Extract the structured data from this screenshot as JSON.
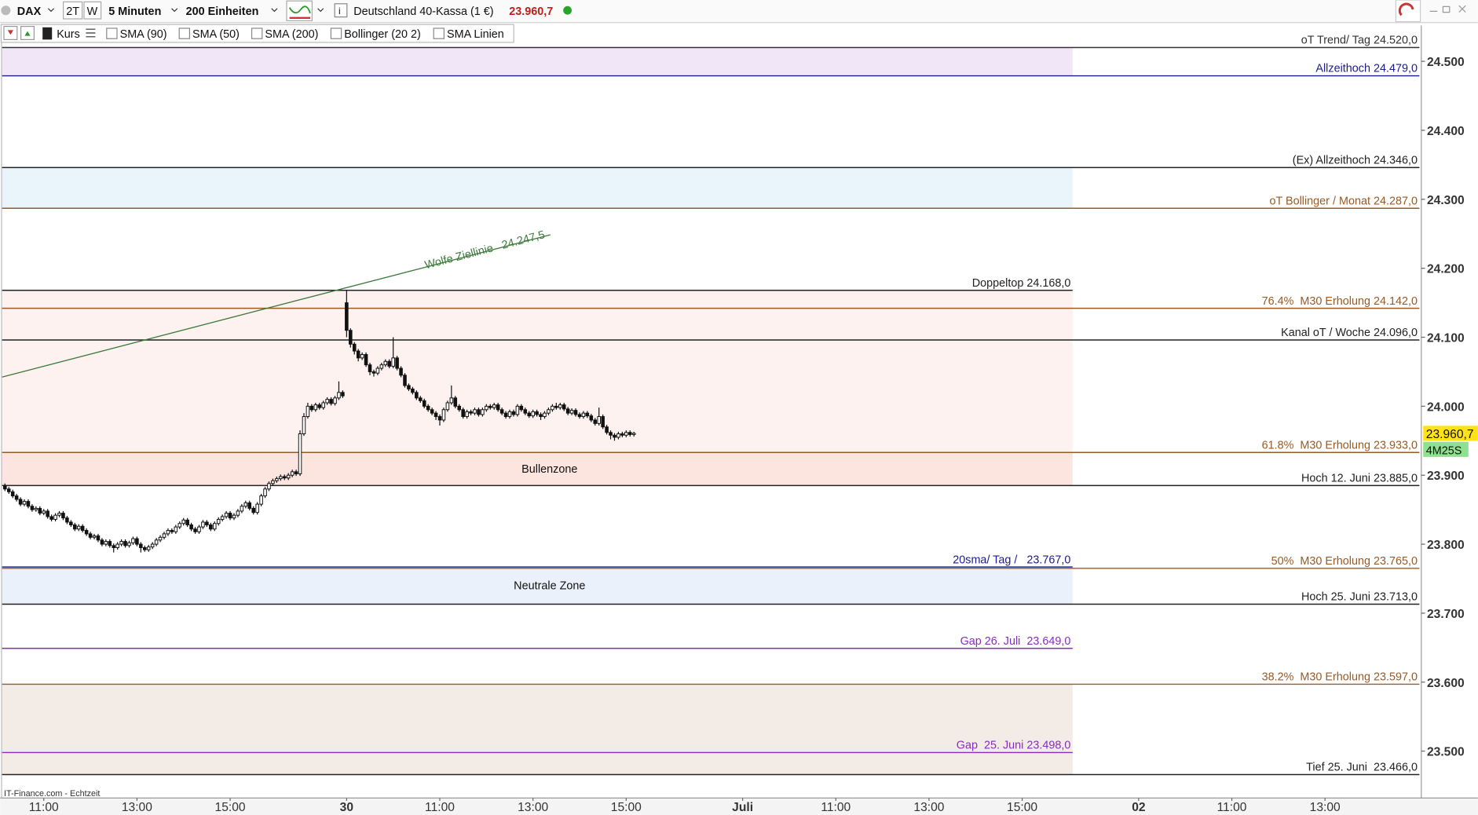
{
  "toolbar": {
    "symbol": "DAX",
    "buttons": [
      "2T",
      "W"
    ],
    "interval": "5 Minuten",
    "units": "200 Einheiten",
    "instrument": "Deutschland 40-Kassa (1 €)"
  },
  "indicators": [
    "Kurs",
    "SMA (90)",
    "SMA (50)",
    "SMA (200)",
    "Bollinger (20 2)",
    "SMA Linien"
  ],
  "footer": "IT-Finance.com - Echtzeit",
  "chart_data": {
    "type": "candlestick",
    "candles": {
      "open": [
        23885,
        23880,
        23876,
        23870,
        23865,
        23858,
        23862,
        23855,
        23850,
        23852,
        23845,
        23848,
        23840,
        23836,
        23842,
        23845,
        23838,
        23832,
        23828,
        23822,
        23826,
        23820,
        23815,
        23810,
        23812,
        23806,
        23800,
        23804,
        23798,
        23795,
        23800,
        23804,
        23798,
        23802,
        23808,
        23800,
        23795,
        23792,
        23796,
        23800,
        23806,
        23810,
        23815,
        23820,
        23818,
        23825,
        23830,
        23835,
        23828,
        23822,
        23818,
        23825,
        23832,
        23828,
        23822,
        23830,
        23836,
        23840,
        23845,
        23838,
        23842,
        23848,
        23855,
        23860,
        23852,
        23846,
        23858,
        23870,
        23880,
        23888,
        23892,
        23895,
        23898,
        23896,
        23900,
        23905,
        23902,
        23960,
        23985,
        24000,
        23995,
        24002,
        23998,
        24005,
        24010,
        24004,
        24012,
        24020,
        24150,
        24110,
        24090,
        24080,
        24070,
        24075,
        24060,
        24050,
        24048,
        24055,
        24060,
        24065,
        24058,
        24070,
        24055,
        24045,
        24030,
        24025,
        24020,
        24012,
        24008,
        24000,
        23995,
        23990,
        23985,
        23980,
        23995,
        24005,
        24012,
        24000,
        23995,
        23985,
        23992,
        23990,
        23995,
        23988,
        23995,
        24000,
        23998,
        24002,
        23995,
        23990,
        23985,
        23992,
        23988,
        24000,
        23995,
        23990,
        23986,
        23992,
        23988,
        23985,
        23990,
        23995,
        24000,
        23998,
        24002,
        23996,
        23990,
        23994,
        23988,
        23985,
        23990,
        23986,
        23980,
        23975,
        23985,
        23970,
        23962,
        23958,
        23955,
        23960,
        23958,
        23962,
        23959
      ],
      "high": [
        23888,
        23883,
        23879,
        23873,
        23868,
        23865,
        23865,
        23858,
        23855,
        23855,
        23851,
        23851,
        23843,
        23845,
        23848,
        23848,
        23841,
        23835,
        23831,
        23829,
        23829,
        23823,
        23818,
        23815,
        23815,
        23809,
        23807,
        23807,
        23801,
        23803,
        23807,
        23807,
        23805,
        23811,
        23811,
        23803,
        23798,
        23799,
        23803,
        23809,
        23813,
        23818,
        23823,
        23823,
        23828,
        23833,
        23838,
        23838,
        23831,
        23825,
        23828,
        23835,
        23835,
        23831,
        23833,
        23839,
        23843,
        23848,
        23848,
        23845,
        23851,
        23858,
        23863,
        23863,
        23855,
        23861,
        23873,
        23883,
        23891,
        23895,
        23898,
        23901,
        23901,
        23903,
        23908,
        23908,
        23965,
        23990,
        24005,
        24003,
        24005,
        24005,
        24008,
        24013,
        24013,
        24015,
        24036,
        24023,
        24168,
        24113,
        24093,
        24083,
        24078,
        24078,
        24063,
        24053,
        24058,
        24063,
        24068,
        24068,
        24100,
        24073,
        24058,
        24048,
        24033,
        24028,
        24023,
        24015,
        24011,
        24003,
        23998,
        23993,
        23988,
        23998,
        24008,
        24030,
        24015,
        24003,
        23998,
        23995,
        23995,
        23998,
        23998,
        23998,
        24003,
        24003,
        24005,
        24005,
        23998,
        23993,
        23995,
        23995,
        24003,
        24003,
        23998,
        23993,
        23995,
        23995,
        23991,
        23993,
        23998,
        24003,
        24005,
        24005,
        24005,
        23999,
        23997,
        23997,
        23991,
        23993,
        23993,
        23989,
        23983,
        23998,
        23988,
        23973,
        23965,
        23961,
        23963,
        23963,
        23965,
        23965,
        23963
      ],
      "low": [
        23877,
        23873,
        23867,
        23862,
        23855,
        23855,
        23852,
        23847,
        23847,
        23842,
        23842,
        23837,
        23833,
        23833,
        23839,
        23835,
        23829,
        23825,
        23819,
        23819,
        23817,
        23812,
        23807,
        23807,
        23803,
        23797,
        23797,
        23795,
        23788,
        23792,
        23797,
        23795,
        23795,
        23799,
        23797,
        23788,
        23789,
        23789,
        23793,
        23797,
        23803,
        23807,
        23812,
        23815,
        23815,
        23822,
        23827,
        23825,
        23819,
        23815,
        23815,
        23822,
        23825,
        23819,
        23819,
        23827,
        23833,
        23837,
        23835,
        23835,
        23839,
        23845,
        23852,
        23849,
        23843,
        23843,
        23855,
        23867,
        23877,
        23885,
        23889,
        23892,
        23893,
        23893,
        23897,
        23899,
        23899,
        23957,
        23982,
        23992,
        23992,
        23995,
        23995,
        24002,
        24001,
        24001,
        24009,
        24012,
        24100,
        24085,
        24075,
        24065,
        24067,
        24057,
        24045,
        24043,
        24045,
        24052,
        24057,
        24055,
        24055,
        24052,
        24042,
        24027,
        24022,
        24017,
        24009,
        24005,
        23997,
        23992,
        23987,
        23980,
        23972,
        23977,
        23992,
        24002,
        23997,
        23992,
        23982,
        23982,
        23987,
        23987,
        23985,
        23985,
        23992,
        23995,
        23995,
        23992,
        23987,
        23982,
        23982,
        23985,
        23985,
        23992,
        23987,
        23983,
        23983,
        23985,
        23980,
        23982,
        23987,
        23992,
        23995,
        23995,
        23993,
        23987,
        23987,
        23985,
        23982,
        23982,
        23983,
        23977,
        23972,
        23972,
        23967,
        23959,
        23952,
        23950,
        23952,
        23955,
        23955,
        23956,
        23956
      ],
      "close": [
        23880,
        23876,
        23870,
        23865,
        23858,
        23862,
        23855,
        23850,
        23852,
        23845,
        23848,
        23840,
        23836,
        23842,
        23845,
        23838,
        23832,
        23828,
        23822,
        23826,
        23820,
        23815,
        23810,
        23812,
        23806,
        23800,
        23804,
        23798,
        23795,
        23800,
        23804,
        23798,
        23802,
        23808,
        23800,
        23795,
        23792,
        23796,
        23800,
        23806,
        23810,
        23815,
        23820,
        23818,
        23825,
        23830,
        23835,
        23828,
        23822,
        23818,
        23825,
        23832,
        23828,
        23822,
        23830,
        23836,
        23840,
        23845,
        23838,
        23842,
        23848,
        23855,
        23860,
        23852,
        23846,
        23858,
        23870,
        23880,
        23888,
        23892,
        23895,
        23898,
        23896,
        23900,
        23905,
        23902,
        23960,
        23985,
        24000,
        23995,
        24002,
        23998,
        24005,
        24010,
        24004,
        24012,
        24020,
        24015,
        24110,
        24090,
        24080,
        24070,
        24075,
        24060,
        24050,
        24048,
        24055,
        24060,
        24065,
        24058,
        24070,
        24055,
        24045,
        24030,
        24025,
        24020,
        24012,
        24008,
        24000,
        23995,
        23990,
        23985,
        23980,
        23995,
        24005,
        24012,
        24000,
        23995,
        23985,
        23992,
        23990,
        23995,
        23988,
        23995,
        24000,
        23998,
        24002,
        23995,
        23990,
        23985,
        23992,
        23988,
        24000,
        23995,
        23990,
        23986,
        23992,
        23988,
        23985,
        23990,
        23995,
        24000,
        23998,
        24002,
        23996,
        23990,
        23994,
        23988,
        23985,
        23990,
        23986,
        23980,
        23975,
        23985,
        23970,
        23962,
        23958,
        23955,
        23960,
        23958,
        23962,
        23959,
        23960.7
      ]
    },
    "xlim": [
      -0.75,
      364.8
    ],
    "xticks": [
      {
        "value": 10,
        "label": "11:00"
      },
      {
        "value": 34,
        "label": "13:00"
      },
      {
        "value": 58,
        "label": "15:00"
      },
      {
        "value": 88,
        "label": "30"
      },
      {
        "value": 112,
        "label": "11:00"
      },
      {
        "value": 136,
        "label": "13:00"
      },
      {
        "value": 160,
        "label": "15:00"
      },
      {
        "value": 190,
        "label": "Juli"
      },
      {
        "value": 214,
        "label": "11:00"
      },
      {
        "value": 238,
        "label": "13:00"
      },
      {
        "value": 262,
        "label": "15:00"
      },
      {
        "value": 292,
        "label": "02"
      },
      {
        "value": 316,
        "label": "11:00"
      },
      {
        "value": 340,
        "label": "13:00"
      }
    ],
    "ylim": [
      23432,
      24552
    ],
    "yticks": [
      {
        "value": 23500,
        "label": "23.500"
      },
      {
        "value": 23600,
        "label": "23.600"
      },
      {
        "value": 23700,
        "label": "23.700"
      },
      {
        "value": 23800,
        "label": "23.800"
      },
      {
        "value": 23900,
        "label": "23.900"
      },
      {
        "value": 24000,
        "label": "24.000"
      },
      {
        "value": 24100,
        "label": "24.100"
      },
      {
        "value": 24200,
        "label": "24.200"
      },
      {
        "value": 24300,
        "label": "24.300"
      },
      {
        "value": 24400,
        "label": "24.400"
      },
      {
        "value": 24500,
        "label": "24.500"
      }
    ],
    "last_price": {
      "value": 23960.7,
      "label": "23.960,7"
    },
    "countdown": "4M25S",
    "zones": [
      {
        "from": 24479,
        "to": 24520,
        "color": "#f1e5f8"
      },
      {
        "from": 24287,
        "to": 24346,
        "color": "#e9f5fb"
      },
      {
        "from": 23933,
        "to": 24168,
        "color": "#fdf2ef"
      },
      {
        "label": "Bullenzone",
        "from": 23885,
        "to": 23933,
        "color": "#fce4df"
      },
      {
        "label": "Neutrale Zone",
        "from": 23713,
        "to": 23767,
        "color": "#ebf1fb"
      },
      {
        "from": 23466,
        "to": 23597,
        "color": "#f3ebe5"
      }
    ],
    "levels": [
      {
        "label": "oT Trend/ Tag 24.520,0",
        "value": 24520,
        "color": "#333333"
      },
      {
        "label": "Allzeithoch 24.479,0",
        "value": 24479,
        "color": "#1c1c8c"
      },
      {
        "label": "(Ex) Allzeithoch 24.346,0",
        "value": 24346,
        "color": "#222222"
      },
      {
        "label": "oT Bollinger / Monat 24.287,0",
        "value": 24287,
        "color": "#9a5a24"
      },
      {
        "label": "76.4%  M30 Erholung 24.142,0",
        "value": 24142,
        "color": "#9a5a24"
      },
      {
        "label": "Kanal oT / Woche 24.096,0",
        "value": 24096,
        "color": "#222222"
      },
      {
        "label": "61.8%  M30 Erholung 23.933,0",
        "value": 23933,
        "color": "#9a5a24"
      },
      {
        "label": "Hoch 12. Juni 23.885,0",
        "value": 23885,
        "color": "#222222"
      },
      {
        "label": "50%  M30 Erholung 23.765,0",
        "value": 23765,
        "color": "#9a5a24"
      },
      {
        "label": "Hoch 25. Juni 23.713,0",
        "value": 23713,
        "color": "#222222"
      },
      {
        "label": "38.2%  M30 Erholung 23.597,0",
        "value": 23597,
        "color": "#9a5a24"
      },
      {
        "label": "Tief 25. Juni  23.466,0",
        "value": 23466,
        "color": "#222222"
      }
    ],
    "short_levels": [
      {
        "label": "Doppeltop 24.168,0",
        "value": 24168,
        "color": "#222222"
      },
      {
        "label": "20sma/ Tag /   23.767,0",
        "value": 23767,
        "color": "#1c1c8c"
      },
      {
        "label": "Gap 26. Juli  23.649,0",
        "value": 23649,
        "color": "#8a2cc0"
      },
      {
        "label": "Gap  25. Juni 23.498,0",
        "value": 23498,
        "color": "#8a2cc0"
      }
    ],
    "trendline": {
      "label": "Wolfe Ziellinie   24.247,5",
      "x": [
        -0.75,
        140.5
      ],
      "values": [
        24042.3,
        24248.6
      ],
      "color": "#3d7a3d"
    }
  }
}
